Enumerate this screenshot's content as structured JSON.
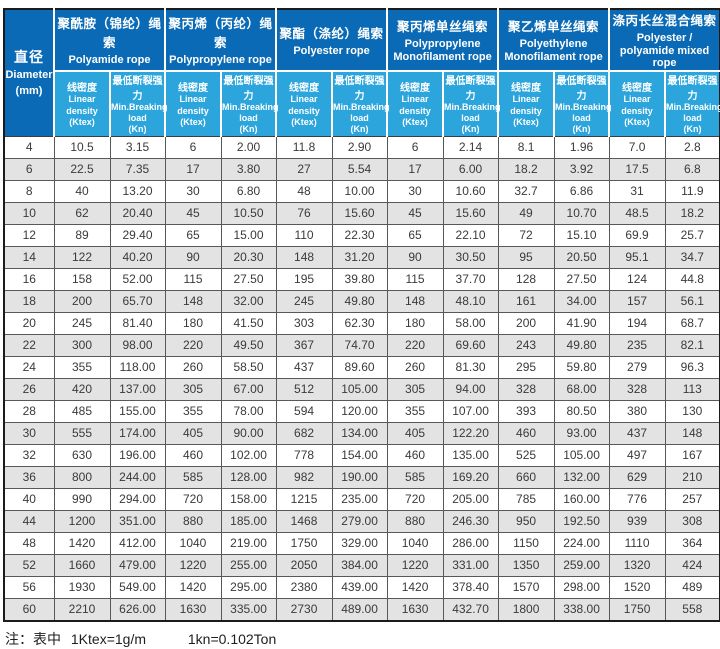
{
  "table": {
    "diameter_header": {
      "zh": "直径",
      "en": "Diameter",
      "unit": "(mm)"
    },
    "groups": [
      {
        "zh": "聚酰胺（锦纶）绳索",
        "en": "Polyamide rope"
      },
      {
        "zh": "聚丙烯（丙纶）绳索",
        "en": "Polypropylene rope"
      },
      {
        "zh": "聚酯（涤纶）绳索",
        "en": "Polyester rope"
      },
      {
        "zh": "聚丙烯单丝绳索",
        "en": "Polypropylene Monofilament rope"
      },
      {
        "zh": "聚乙烯单丝绳索",
        "en": "Polyethylene Monofilament rope"
      },
      {
        "zh": "涤丙长丝混合绳索",
        "en": "Polyester / polyamide mixed rope"
      }
    ],
    "sub": {
      "density": {
        "zh": "线密度",
        "en": "Linear density",
        "unit": "(Ktex)"
      },
      "breaking": {
        "zh": "最低断裂强力",
        "en": "Min.Breaking",
        "en2": "load",
        "unit": "(Kn)"
      }
    },
    "rows": [
      [
        "4",
        "10.5",
        "3.15",
        "6",
        "2.00",
        "11.8",
        "2.90",
        "6",
        "2.14",
        "8.1",
        "1.96",
        "7.0",
        "2.8"
      ],
      [
        "6",
        "22.5",
        "7.35",
        "17",
        "3.80",
        "27",
        "5.54",
        "17",
        "6.00",
        "18.2",
        "3.92",
        "17.5",
        "6.8"
      ],
      [
        "8",
        "40",
        "13.20",
        "30",
        "6.80",
        "48",
        "10.00",
        "30",
        "10.60",
        "32.7",
        "6.86",
        "31",
        "11.9"
      ],
      [
        "10",
        "62",
        "20.40",
        "45",
        "10.50",
        "76",
        "15.60",
        "45",
        "15.60",
        "49",
        "10.70",
        "48.5",
        "18.2"
      ],
      [
        "12",
        "89",
        "29.40",
        "65",
        "15.00",
        "110",
        "22.30",
        "65",
        "22.10",
        "72",
        "15.10",
        "69.9",
        "25.7"
      ],
      [
        "14",
        "122",
        "40.20",
        "90",
        "20.30",
        "148",
        "31.20",
        "90",
        "30.50",
        "95",
        "20.50",
        "95.1",
        "34.7"
      ],
      [
        "16",
        "158",
        "52.00",
        "115",
        "27.50",
        "195",
        "39.80",
        "115",
        "37.70",
        "128",
        "27.50",
        "124",
        "44.8"
      ],
      [
        "18",
        "200",
        "65.70",
        "148",
        "32.00",
        "245",
        "49.80",
        "148",
        "48.10",
        "161",
        "34.00",
        "157",
        "56.1"
      ],
      [
        "20",
        "245",
        "81.40",
        "180",
        "41.50",
        "303",
        "62.30",
        "180",
        "58.00",
        "200",
        "41.90",
        "194",
        "68.7"
      ],
      [
        "22",
        "300",
        "98.00",
        "220",
        "49.50",
        "367",
        "74.70",
        "220",
        "69.60",
        "243",
        "49.80",
        "235",
        "82.1"
      ],
      [
        "24",
        "355",
        "118.00",
        "260",
        "58.50",
        "437",
        "89.60",
        "260",
        "81.30",
        "295",
        "59.80",
        "279",
        "96.3"
      ],
      [
        "26",
        "420",
        "137.00",
        "305",
        "67.00",
        "512",
        "105.00",
        "305",
        "94.00",
        "328",
        "68.00",
        "328",
        "113"
      ],
      [
        "28",
        "485",
        "155.00",
        "355",
        "78.00",
        "594",
        "120.00",
        "355",
        "107.00",
        "393",
        "80.50",
        "380",
        "130"
      ],
      [
        "30",
        "555",
        "174.00",
        "405",
        "90.00",
        "682",
        "134.00",
        "405",
        "122.20",
        "460",
        "93.00",
        "437",
        "148"
      ],
      [
        "32",
        "630",
        "196.00",
        "460",
        "102.00",
        "778",
        "154.00",
        "460",
        "135.00",
        "525",
        "105.00",
        "497",
        "167"
      ],
      [
        "36",
        "800",
        "244.00",
        "585",
        "128.00",
        "982",
        "190.00",
        "585",
        "169.20",
        "660",
        "132.00",
        "629",
        "210"
      ],
      [
        "40",
        "990",
        "294.00",
        "720",
        "158.00",
        "1215",
        "235.00",
        "720",
        "205.00",
        "785",
        "160.00",
        "776",
        "257"
      ],
      [
        "44",
        "1200",
        "351.00",
        "880",
        "185.00",
        "1468",
        "279.00",
        "880",
        "246.30",
        "950",
        "192.50",
        "939",
        "308"
      ],
      [
        "48",
        "1420",
        "412.00",
        "1040",
        "219.00",
        "1750",
        "329.00",
        "1040",
        "286.00",
        "1150",
        "224.00",
        "1110",
        "364"
      ],
      [
        "52",
        "1660",
        "479.00",
        "1220",
        "255.00",
        "2050",
        "384.00",
        "1220",
        "331.00",
        "1350",
        "259.00",
        "1320",
        "424"
      ],
      [
        "56",
        "1930",
        "549.00",
        "1420",
        "295.00",
        "2380",
        "439.00",
        "1420",
        "378.40",
        "1570",
        "298.00",
        "1520",
        "489"
      ],
      [
        "60",
        "2210",
        "626.00",
        "1630",
        "335.00",
        "2730",
        "489.00",
        "1630",
        "432.70",
        "1800",
        "338.00",
        "1750",
        "558"
      ]
    ],
    "note": {
      "label": "注：表中",
      "eq1": "1Ktex=1g/m",
      "eq2": "1kn=0.102Ton"
    }
  },
  "colors": {
    "header_dark_blue": "#0a6ab5",
    "header_light_blue": "#2ba5dc",
    "row_alternate_gray": "#e3e3e3",
    "grid_line": "#585858",
    "outer_border": "#1b1b1b",
    "body_text": "#3a3a3a"
  }
}
